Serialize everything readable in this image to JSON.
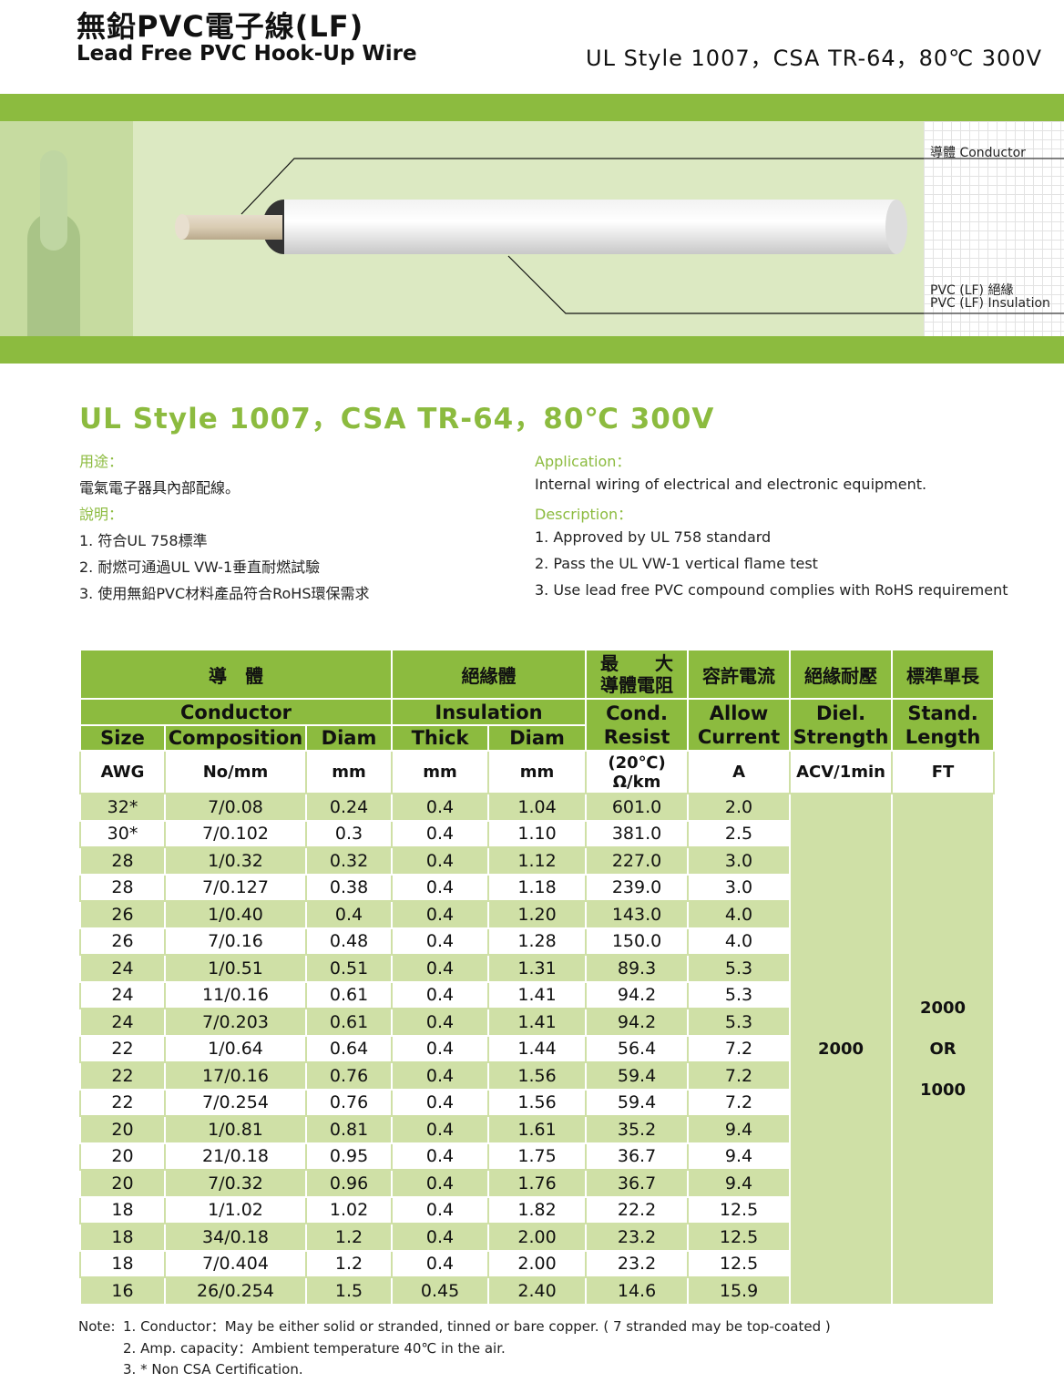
{
  "header": {
    "title_cn": "無鉛PVC電子線(LF)",
    "title_en": "Lead Free PVC Hook-Up Wire",
    "standard": "UL Style 1007，CSA TR-64，80℃ 300V"
  },
  "diagram": {
    "conductor_label": "導體  Conductor",
    "insulation_label_cn": "PVC (LF) 絕緣",
    "insulation_label_en": "PVC (LF) Insulation"
  },
  "spec": {
    "subtitle": "UL Style 1007，CSA TR-64，80℃ 300V",
    "cn": {
      "app_head": "用途：",
      "app": "電氣電子器具內部配線。",
      "desc_head": "說明：",
      "items": [
        "1. 符合UL 758標準",
        "2. 耐燃可通過UL VW-1垂直耐燃試驗",
        "3. 使用無鉛PVC材料產品符合RoHS環保需求"
      ]
    },
    "en": {
      "app_head": "Application：",
      "app": "Internal wiring of electrical and electronic equipment.",
      "desc_head": "Description：",
      "items": [
        "1. Approved by UL 758 standard",
        "2. Pass the UL VW-1 vertical flame test",
        "3. Use lead free PVC compound complies with RoHS requirement"
      ]
    }
  },
  "table": {
    "h_cn": {
      "conductor": "導　體",
      "insulation": "絕緣體",
      "resist_1": "最　　大",
      "resist_2": "導體電阻",
      "current": "容許電流",
      "diel": "絕緣耐壓",
      "length": "標準單長"
    },
    "h_en": {
      "conductor": "Conductor",
      "insulation": "Insulation",
      "resist": "Cond. Resist",
      "current": "Allow Current",
      "diel": "Diel. Strength",
      "length": "Stand. Length",
      "size": "Size",
      "composition": "Composition",
      "diam": "Diam",
      "thick": "Thick",
      "ins_diam": "Diam"
    },
    "units": {
      "size": "AWG",
      "composition": "No/mm",
      "diam": "mm",
      "thick": "mm",
      "ins_diam": "mm",
      "resist_1": "(20℃)",
      "resist_2": "Ω/km",
      "current": "A",
      "diel": "ACV/1min",
      "length": "FT"
    },
    "rows": [
      [
        "32*",
        "7/0.08",
        "0.24",
        "0.4",
        "1.04",
        "601.0",
        "2.0"
      ],
      [
        "30*",
        "7/0.102",
        "0.3",
        "0.4",
        "1.10",
        "381.0",
        "2.5"
      ],
      [
        "28",
        "1/0.32",
        "0.32",
        "0.4",
        "1.12",
        "227.0",
        "3.0"
      ],
      [
        "28",
        "7/0.127",
        "0.38",
        "0.4",
        "1.18",
        "239.0",
        "3.0"
      ],
      [
        "26",
        "1/0.40",
        "0.4",
        "0.4",
        "1.20",
        "143.0",
        "4.0"
      ],
      [
        "26",
        "7/0.16",
        "0.48",
        "0.4",
        "1.28",
        "150.0",
        "4.0"
      ],
      [
        "24",
        "1/0.51",
        "0.51",
        "0.4",
        "1.31",
        "89.3",
        "5.3"
      ],
      [
        "24",
        "11/0.16",
        "0.61",
        "0.4",
        "1.41",
        "94.2",
        "5.3"
      ],
      [
        "24",
        "7/0.203",
        "0.61",
        "0.4",
        "1.41",
        "94.2",
        "5.3"
      ],
      [
        "22",
        "1/0.64",
        "0.64",
        "0.4",
        "1.44",
        "56.4",
        "7.2"
      ],
      [
        "22",
        "17/0.16",
        "0.76",
        "0.4",
        "1.56",
        "59.4",
        "7.2"
      ],
      [
        "22",
        "7/0.254",
        "0.76",
        "0.4",
        "1.56",
        "59.4",
        "7.2"
      ],
      [
        "20",
        "1/0.81",
        "0.81",
        "0.4",
        "1.61",
        "35.2",
        "9.4"
      ],
      [
        "20",
        "21/0.18",
        "0.95",
        "0.4",
        "1.75",
        "36.7",
        "9.4"
      ],
      [
        "20",
        "7/0.32",
        "0.96",
        "0.4",
        "1.76",
        "36.7",
        "9.4"
      ],
      [
        "18",
        "1/1.02",
        "1.02",
        "0.4",
        "1.82",
        "22.2",
        "12.5"
      ],
      [
        "18",
        "34/0.18",
        "1.2",
        "0.4",
        "2.00",
        "23.2",
        "12.5"
      ],
      [
        "18",
        "7/0.404",
        "1.2",
        "0.4",
        "2.00",
        "23.2",
        "12.5"
      ],
      [
        "16",
        "26/0.254",
        "1.5",
        "0.45",
        "2.40",
        "14.6",
        "15.9"
      ]
    ],
    "diel_value": "2000",
    "length_value": [
      "2000",
      "OR",
      "1000"
    ]
  },
  "notes": {
    "label": "Note:",
    "items": [
      "1. Conductor：May be either solid or stranded, tinned or bare copper. ( 7 stranded may be top-coated )",
      "2. Amp. capacity：Ambient temperature 40℃ in the air.",
      "3. * Non CSA Certification."
    ]
  },
  "colors": {
    "brand_green": "#8cbb3f",
    "row_green": "#cfe0a6"
  }
}
